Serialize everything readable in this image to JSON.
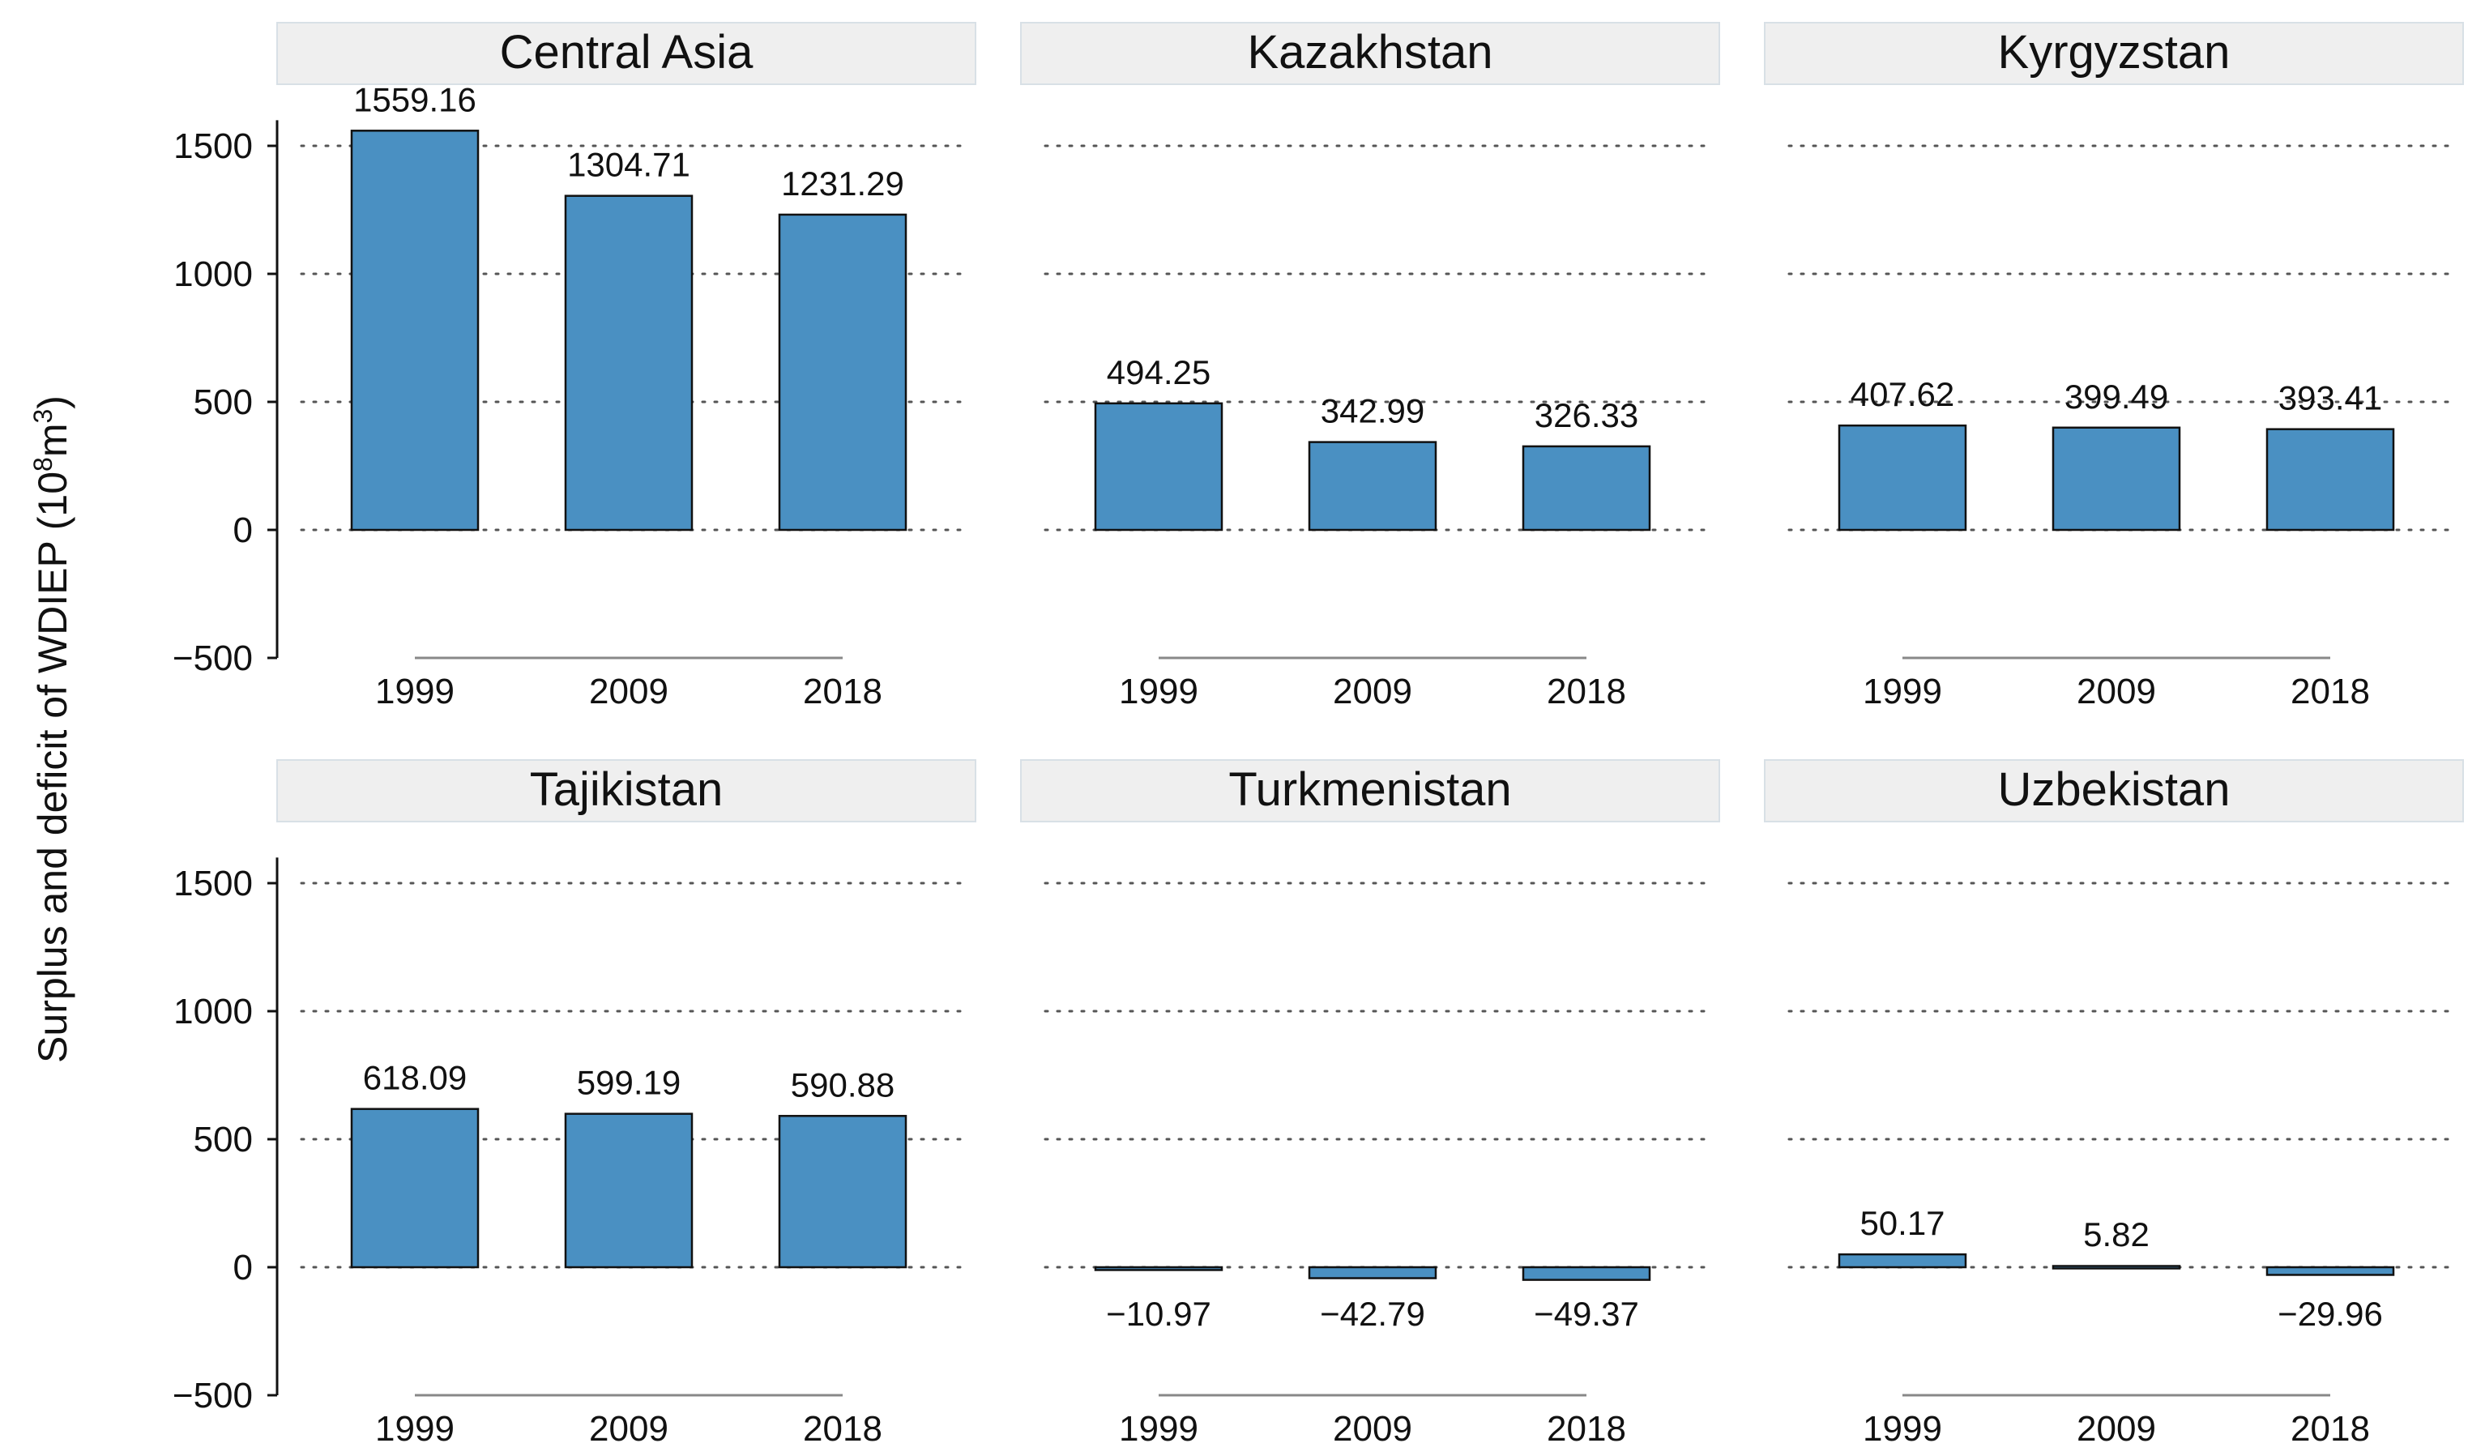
{
  "chart_data": {
    "type": "bar",
    "ylabel": "Surplus and deficit of WDIEP (10",
    "ylabel_sup1": "8",
    "ylabel_mid": "m",
    "ylabel_sup2": "3",
    "ylabel_end": ")",
    "categories": [
      "1999",
      "2009",
      "2018"
    ],
    "ylim": [
      -500,
      1600
    ],
    "yticks": [
      -500,
      0,
      500,
      1000,
      1500
    ],
    "ytick_labels": [
      "−500",
      "0",
      "500",
      "1000",
      "1500"
    ],
    "bar_color": "#4a90c2",
    "strip_color": "#efefef",
    "grid": "dotted horizontal",
    "panels": [
      {
        "name": "Central Asia",
        "values": [
          1559.16,
          1304.71,
          1231.29
        ],
        "labels": [
          "1559.16",
          "1304.71",
          "1231.29"
        ]
      },
      {
        "name": "Kazakhstan",
        "values": [
          494.25,
          342.99,
          326.33
        ],
        "labels": [
          "494.25",
          "342.99",
          "326.33"
        ]
      },
      {
        "name": "Kyrgyzstan",
        "values": [
          407.62,
          399.49,
          393.41
        ],
        "labels": [
          "407.62",
          "399.49",
          "393.41"
        ]
      },
      {
        "name": "Tajikistan",
        "values": [
          618.09,
          599.19,
          590.88
        ],
        "labels": [
          "618.09",
          "599.19",
          "590.88"
        ]
      },
      {
        "name": "Turkmenistan",
        "values": [
          -10.97,
          -42.79,
          -49.37
        ],
        "labels": [
          "−10.97",
          "−42.79",
          "−49.37"
        ]
      },
      {
        "name": "Uzbekistan",
        "values": [
          50.17,
          5.82,
          -29.96
        ],
        "labels": [
          "50.17",
          "5.82",
          "−29.96"
        ]
      }
    ]
  }
}
